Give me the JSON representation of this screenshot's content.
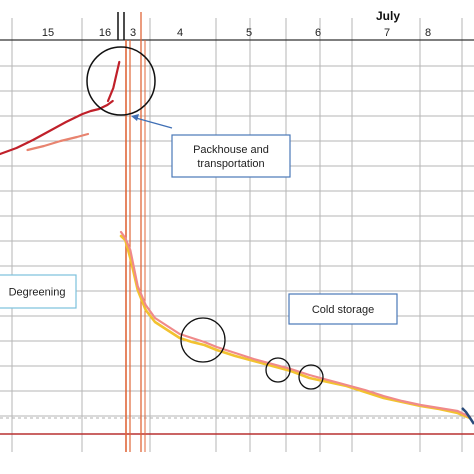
{
  "chart_data": {
    "type": "line",
    "title": "",
    "xlabel": "",
    "ylabel": "",
    "grid": true,
    "month_label": "July",
    "x_tick_labels": [
      "15",
      "16",
      "3",
      "4",
      "5",
      "6",
      "7",
      "8"
    ],
    "annotations": [
      {
        "id": "packhouse",
        "text_lines": [
          "Packhouse and",
          "transportation"
        ]
      },
      {
        "id": "degreening",
        "text_lines": [
          "Degreening"
        ]
      },
      {
        "id": "cold",
        "text_lines": [
          "Cold storage"
        ]
      }
    ],
    "series": [
      {
        "color": "#c0202a",
        "x": [
          0,
          0.3,
          0.6,
          0.9,
          1.2,
          1.5,
          1.65,
          1.8,
          1.95,
          2.05
        ],
        "y": [
          154,
          148,
          140,
          131,
          122,
          114,
          111,
          109,
          105,
          101
        ]
      },
      {
        "color": "#e8836f",
        "x": [
          0.5,
          0.8,
          1.1,
          1.4,
          1.6
        ],
        "y": [
          150,
          146,
          141,
          137,
          134
        ]
      },
      {
        "color": "#c0202a",
        "x": [
          2.05,
          2.12,
          2.2
        ],
        "y": [
          101,
          88,
          62
        ]
      },
      {
        "color": "#f2c230",
        "x": [
          2.45,
          2.52,
          2.6,
          2.72,
          2.85,
          3.0,
          3.2,
          3.4,
          3.6,
          3.8,
          4.0,
          4.3,
          4.6,
          4.9,
          5.2,
          5.5,
          5.8,
          6.1,
          6.4,
          6.7,
          7.0,
          7.3,
          7.6,
          7.9,
          8.1
        ],
        "y": [
          236,
          240,
          258,
          290,
          310,
          322,
          330,
          338,
          342,
          345,
          350,
          356,
          361,
          366,
          371,
          378,
          382,
          386,
          392,
          398,
          402,
          406,
          409,
          413,
          418
        ]
      },
      {
        "color": "#f08a8a",
        "x": [
          2.45,
          2.52,
          2.6,
          2.72,
          2.85,
          3.0,
          3.2,
          3.4,
          3.6,
          3.8,
          4.0,
          4.3,
          4.6,
          4.9,
          5.2,
          5.5,
          5.8,
          6.1,
          6.4,
          6.7,
          7.0,
          7.3,
          7.6,
          7.9,
          8.1
        ],
        "y": [
          232,
          238,
          250,
          286,
          305,
          318,
          326,
          334,
          338,
          342,
          347,
          353,
          359,
          364,
          369,
          375,
          380,
          385,
          390,
          396,
          401,
          405,
          408,
          411,
          417
        ]
      }
    ]
  }
}
